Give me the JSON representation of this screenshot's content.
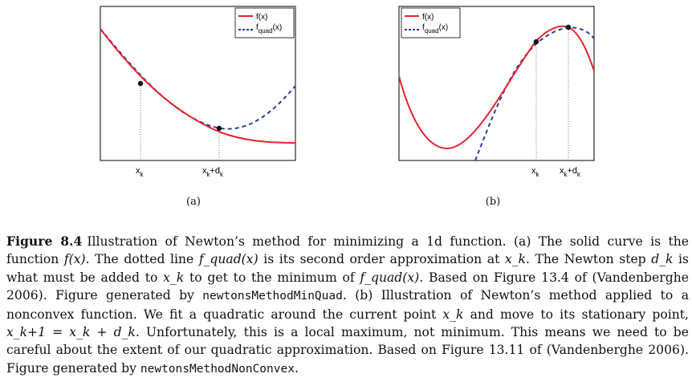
{
  "figure": {
    "panels": [
      {
        "id": "a",
        "label": "(a)",
        "legend": [
          "f(x)",
          "f",
          "quad",
          "(x)"
        ],
        "ticks": [
          "x",
          "k",
          "x",
          "k",
          "+d",
          "k"
        ]
      },
      {
        "id": "b",
        "label": "(b)",
        "legend": [
          "f(x)",
          "f",
          "quad",
          "(x)"
        ],
        "ticks": [
          "x",
          "k",
          "x",
          "k",
          "+d",
          "k"
        ]
      }
    ],
    "colors": {
      "f": "#e8222a",
      "quad": "#2b3f9a",
      "point": "#111111"
    }
  },
  "chart_data": [
    {
      "type": "line",
      "series": [
        {
          "name": "f(x)"
        },
        {
          "name": "f_quad(x)"
        }
      ],
      "legend_position": "top-right",
      "grid": false
    },
    {
      "type": "line",
      "series": [
        {
          "name": "f(x)"
        },
        {
          "name": "f_quad(x)"
        }
      ],
      "legend_position": "top-right",
      "grid": false
    }
  ],
  "caption": {
    "figure_number": "Figure 8.4",
    "text_1": "Illustration of Newton’s method for minimizing a 1d function. (a) The solid curve is the function ",
    "math_1": "f(x)",
    "text_2": ". The dotted line ",
    "math_2": "f_quad(x)",
    "text_3": " is its second order approximation at ",
    "math_3": "x_k",
    "text_4": ". The Newton step ",
    "math_4": "d_k",
    "text_5": " is what must be added to ",
    "math_5": "x_k",
    "text_6": " to get to the minimum of ",
    "math_6": "f_quad(x)",
    "text_7": ". Based on Figure 13.4 of (Vandenberghe 2006). Figure generated by ",
    "code_1": "newtonsMethodMinQuad",
    "text_8": ". (b) Illustration of Newton’s method applied to a nonconvex function. We fit a quadratic around the current point ",
    "math_7": "x_k",
    "text_9": " and move to its stationary point, ",
    "math_8": "x_k+1 = x_k + d_k",
    "text_10": ". Unfortunately, this is a local maximum, not minimum. This means we need to be careful about the extent of our quadratic approximation. Based on Figure 13.11 of (Vandenberghe 2006). Figure generated by ",
    "code_2": "newtonsMethodNonConvex",
    "text_11": "."
  }
}
